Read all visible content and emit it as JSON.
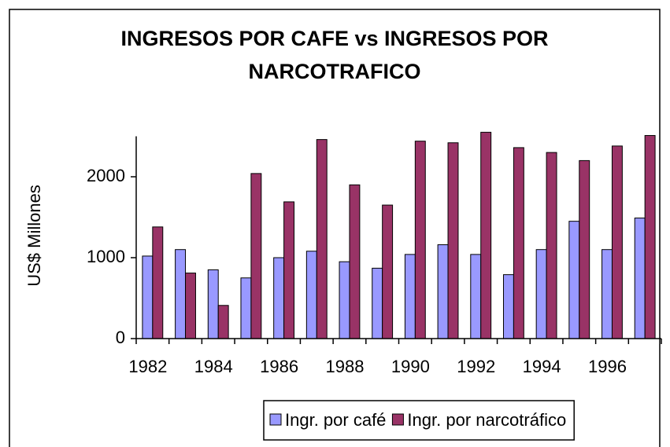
{
  "chart_data": {
    "type": "bar",
    "title": "INGRESOS POR CAFE vs INGRESOS POR NARCOTRAFICO",
    "y_label": "US$ Millones",
    "categories": [
      "1982",
      null,
      "1984",
      null,
      "1986",
      null,
      "1988",
      null,
      "1990",
      null,
      "1992",
      null,
      "1994",
      null,
      "1996",
      null
    ],
    "series": [
      {
        "name": "Ingr. por café",
        "color": "#9999ff",
        "values": [
          1020,
          1100,
          850,
          750,
          1000,
          1080,
          950,
          870,
          1040,
          1160,
          1040,
          790,
          1100,
          1450,
          1100,
          1490
        ]
      },
      {
        "name": "Ingr. por narcotráfico",
        "color": "#993366",
        "values": [
          1380,
          810,
          410,
          2040,
          1690,
          2460,
          1900,
          1650,
          2440,
          2420,
          2550,
          2360,
          2300,
          2200,
          2380,
          2510
        ]
      }
    ],
    "ylim": [
      0,
      2500
    ],
    "yticks": [
      0,
      1000,
      2000
    ],
    "legend": "bottom"
  }
}
